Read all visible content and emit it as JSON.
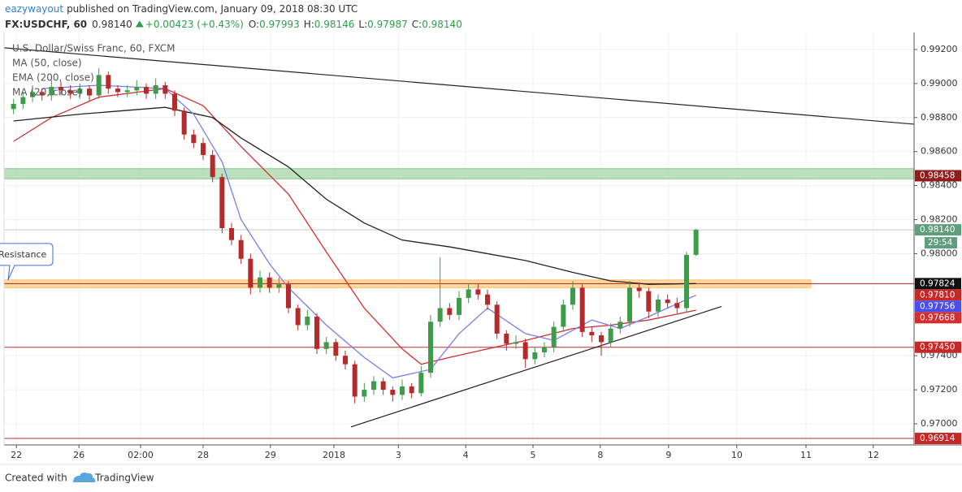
{
  "header": {
    "author": "eazywayout",
    "published": "published on TradingView.com, January 09, 2018 08:30 UTC",
    "symbol": "FX:USDCHF, 60",
    "last": "0.98140",
    "change": "+0.00423 (+0.43%)",
    "ohlc_labels": [
      "O:",
      "H:",
      "L:",
      "C:"
    ],
    "ohlc_values": [
      "0.97993",
      "0.98146",
      "0.97987",
      "0.98140"
    ]
  },
  "chart_data": {
    "type": "candlestick",
    "title": "U.S. Dollar/Swiss Franc, 60, FXCM",
    "up_color": "#3f9a4c",
    "down_color": "#b52a2a",
    "grid": true,
    "xlim": [
      -1,
      95
    ],
    "ylim": [
      0.96876,
      0.993
    ],
    "xticks": [
      {
        "value": 0.3,
        "label": "22"
      },
      {
        "value": 6.9,
        "label": "26"
      },
      {
        "value": 13.4,
        "label": "02:00"
      },
      {
        "value": 20,
        "label": "28"
      },
      {
        "value": 27.1,
        "label": "29"
      },
      {
        "value": 33.8,
        "label": "2018"
      },
      {
        "value": 40.6,
        "label": "3"
      },
      {
        "value": 47.7,
        "label": "4"
      },
      {
        "value": 54.8,
        "label": "5"
      },
      {
        "value": 61.9,
        "label": "8"
      },
      {
        "value": 69.1,
        "label": "9"
      },
      {
        "value": 76.3,
        "label": "10"
      },
      {
        "value": 83.6,
        "label": "11"
      },
      {
        "value": 90.7,
        "label": "12"
      }
    ],
    "yticks": [
      {
        "value": 0.97,
        "label": "0.97000"
      },
      {
        "value": 0.972,
        "label": "0.97200"
      },
      {
        "value": 0.974,
        "label": "0.97400"
      },
      {
        "value": 0.98,
        "label": "0.98000"
      },
      {
        "value": 0.982,
        "label": "0.98200"
      },
      {
        "value": 0.984,
        "label": "0.98400"
      },
      {
        "value": 0.986,
        "label": "0.98600"
      },
      {
        "value": 0.988,
        "label": "0.98800"
      },
      {
        "value": 0.99,
        "label": "0.99000"
      },
      {
        "value": 0.992,
        "label": "0.99200"
      }
    ],
    "ohlc": [
      [
        0.9885,
        0.9891,
        0.9882,
        0.9888
      ],
      [
        0.9888,
        0.9895,
        0.9885,
        0.9892
      ],
      [
        0.9892,
        0.9899,
        0.9889,
        0.9895
      ],
      [
        0.9895,
        0.9897,
        0.989,
        0.9893
      ],
      [
        0.9893,
        0.9902,
        0.989,
        0.9898
      ],
      [
        0.9898,
        0.9901,
        0.9893,
        0.9896
      ],
      [
        0.9896,
        0.9899,
        0.9891,
        0.9894
      ],
      [
        0.9894,
        0.99,
        0.9891,
        0.9897
      ],
      [
        0.9897,
        0.9899,
        0.989,
        0.9893
      ],
      [
        0.9893,
        0.9909,
        0.9891,
        0.9905
      ],
      [
        0.9905,
        0.9907,
        0.9894,
        0.9897
      ],
      [
        0.9897,
        0.9899,
        0.9892,
        0.9895
      ],
      [
        0.9895,
        0.9899,
        0.9892,
        0.9896
      ],
      [
        0.9896,
        0.9902,
        0.9893,
        0.9898
      ],
      [
        0.9898,
        0.99,
        0.9891,
        0.9894
      ],
      [
        0.9894,
        0.9903,
        0.9891,
        0.9899
      ],
      [
        0.9899,
        0.9901,
        0.9891,
        0.9894
      ],
      [
        0.9894,
        0.9896,
        0.9881,
        0.9884
      ],
      [
        0.9884,
        0.9886,
        0.9867,
        0.987
      ],
      [
        0.987,
        0.9873,
        0.9862,
        0.9865
      ],
      [
        0.9865,
        0.9868,
        0.9855,
        0.9858
      ],
      [
        0.9858,
        0.9861,
        0.9842,
        0.9845
      ],
      [
        0.9845,
        0.9847,
        0.9812,
        0.9815
      ],
      [
        0.9815,
        0.9818,
        0.9805,
        0.9808
      ],
      [
        0.9808,
        0.9811,
        0.9794,
        0.9797
      ],
      [
        0.9797,
        0.98,
        0.9776,
        0.978
      ],
      [
        0.978,
        0.979,
        0.9777,
        0.9786
      ],
      [
        0.9786,
        0.9789,
        0.9777,
        0.978
      ],
      [
        0.978,
        0.9786,
        0.9777,
        0.9782
      ],
      [
        0.9782,
        0.9784,
        0.9765,
        0.9768
      ],
      [
        0.9768,
        0.977,
        0.9755,
        0.9758
      ],
      [
        0.9758,
        0.9767,
        0.9755,
        0.9763
      ],
      [
        0.9763,
        0.9765,
        0.9741,
        0.9744
      ],
      [
        0.9744,
        0.9751,
        0.9741,
        0.9748
      ],
      [
        0.9748,
        0.975,
        0.9737,
        0.974
      ],
      [
        0.974,
        0.9743,
        0.9732,
        0.9735
      ],
      [
        0.9735,
        0.9737,
        0.9712,
        0.9716
      ],
      [
        0.9716,
        0.9724,
        0.9713,
        0.972
      ],
      [
        0.972,
        0.9728,
        0.9717,
        0.9725
      ],
      [
        0.9725,
        0.9727,
        0.9717,
        0.972
      ],
      [
        0.972,
        0.9722,
        0.9713,
        0.9717
      ],
      [
        0.9717,
        0.9726,
        0.9714,
        0.9722
      ],
      [
        0.9722,
        0.9724,
        0.9715,
        0.9718
      ],
      [
        0.9718,
        0.9734,
        0.9716,
        0.973
      ],
      [
        0.973,
        0.9764,
        0.9727,
        0.976
      ],
      [
        0.976,
        0.9798,
        0.9757,
        0.9768
      ],
      [
        0.9768,
        0.9771,
        0.9761,
        0.9764
      ],
      [
        0.9764,
        0.9778,
        0.9761,
        0.9774
      ],
      [
        0.9774,
        0.9782,
        0.9771,
        0.9779
      ],
      [
        0.9779,
        0.9782,
        0.9773,
        0.9776
      ],
      [
        0.9776,
        0.9779,
        0.9767,
        0.977
      ],
      [
        0.977,
        0.9772,
        0.975,
        0.9753
      ],
      [
        0.9753,
        0.9755,
        0.9743,
        0.9747
      ],
      [
        0.9747,
        0.9752,
        0.9744,
        0.9748
      ],
      [
        0.9748,
        0.975,
        0.9733,
        0.9738
      ],
      [
        0.9738,
        0.9745,
        0.9735,
        0.9742
      ],
      [
        0.9742,
        0.9748,
        0.9739,
        0.9745
      ],
      [
        0.9745,
        0.976,
        0.9742,
        0.9757
      ],
      [
        0.9757,
        0.9773,
        0.9754,
        0.977
      ],
      [
        0.977,
        0.9784,
        0.9767,
        0.978
      ],
      [
        0.978,
        0.9782,
        0.9751,
        0.9754
      ],
      [
        0.9754,
        0.9757,
        0.9748,
        0.9752
      ],
      [
        0.9752,
        0.9754,
        0.974,
        0.9748
      ],
      [
        0.9748,
        0.9759,
        0.9745,
        0.9756
      ],
      [
        0.9756,
        0.9763,
        0.9753,
        0.976
      ],
      [
        0.976,
        0.9784,
        0.9757,
        0.978
      ],
      [
        0.978,
        0.9783,
        0.9774,
        0.9778
      ],
      [
        0.9778,
        0.978,
        0.9762,
        0.9766
      ],
      [
        0.9766,
        0.9776,
        0.9763,
        0.9773
      ],
      [
        0.9773,
        0.9776,
        0.9768,
        0.9771
      ],
      [
        0.9771,
        0.9774,
        0.9765,
        0.9768
      ],
      [
        0.9768,
        0.9801,
        0.9766,
        0.97993
      ],
      [
        0.97993,
        0.98146,
        0.97987,
        0.9814
      ]
    ],
    "series": [
      {
        "name": "MA (50, close)",
        "color": "#d32f2f",
        "x": [
          0,
          4,
          9,
          16,
          20,
          24,
          29,
          33,
          37,
          41,
          43,
          46,
          50,
          54,
          59,
          63,
          67,
          72
        ],
        "values": [
          0.9866,
          0.988,
          0.9892,
          0.9897,
          0.9887,
          0.9863,
          0.9835,
          0.9801,
          0.9768,
          0.9744,
          0.9735,
          0.9739,
          0.9744,
          0.9749,
          0.9756,
          0.9758,
          0.9761,
          0.97668
        ]
      },
      {
        "name": "EMA (200, close)",
        "color": "#222222",
        "x": [
          0,
          7,
          16,
          21,
          24,
          29,
          33,
          37,
          41,
          46,
          50,
          54,
          59,
          63,
          67,
          72
        ],
        "values": [
          0.9878,
          0.9882,
          0.9886,
          0.988,
          0.9868,
          0.9851,
          0.9832,
          0.9818,
          0.9808,
          0.9804,
          0.98,
          0.9796,
          0.9789,
          0.9784,
          0.9782,
          0.97824
        ]
      },
      {
        "name": "MA (20, close)",
        "color": "#7b7bef",
        "x": [
          3,
          9,
          16,
          19,
          22,
          24,
          27,
          29,
          33,
          37,
          40,
          44,
          47,
          50,
          54,
          57,
          61,
          64,
          67,
          72
        ],
        "values": [
          0.9897,
          0.9899,
          0.9897,
          0.9882,
          0.9854,
          0.982,
          0.9794,
          0.978,
          0.9758,
          0.9739,
          0.9727,
          0.9732,
          0.9753,
          0.9768,
          0.9753,
          0.9749,
          0.9761,
          0.9756,
          0.9763,
          0.97756
        ]
      }
    ],
    "trendlines": [
      {
        "x": [
          -1,
          95
        ],
        "values": [
          0.9921,
          0.98761
        ],
        "color": "#222222"
      },
      {
        "x": [
          35.6,
          74.7
        ],
        "values": [
          0.96982,
          0.9769
        ],
        "color": "#222222"
      }
    ],
    "zones": [
      {
        "from": 0.9844,
        "to": 0.985,
        "color": "#a5d6a7",
        "x_end": 95
      },
      {
        "from": 0.978,
        "to": 0.97845,
        "color": "#ffcc80",
        "x_end": 84.1
      }
    ],
    "levels": [
      {
        "value": 0.97824,
        "color": "#b71c1c"
      },
      {
        "value": 0.9745,
        "color": "#c62828"
      },
      {
        "value": 0.96914,
        "color": "#c62828"
      },
      {
        "value": 0.9814,
        "color": "#c8c8c8"
      }
    ],
    "annotation": "Resistance",
    "price_labels": [
      {
        "value": 0.98458,
        "label": "0.98458",
        "color": "#8e1c1c"
      },
      {
        "value": 0.9814,
        "label": "0.98140",
        "color": "#5f9e7c"
      },
      {
        "value": 0.97824,
        "label": "0.97824",
        "color": "#111111"
      },
      {
        "value": 0.9781,
        "label": "0.97810",
        "color": "#c62828"
      },
      {
        "value": 0.97756,
        "label": "0.97756",
        "color": "#4a4ef0"
      },
      {
        "value": 0.97668,
        "label": "0.97668",
        "color": "#d32f2f"
      },
      {
        "value": 0.9745,
        "label": "0.97450",
        "color": "#c62828"
      },
      {
        "value": 0.96914,
        "label": "0.96914",
        "color": "#c62828"
      }
    ],
    "countdown": "29:54"
  },
  "footer": {
    "created": "Created with",
    "brand": "TradingView"
  }
}
